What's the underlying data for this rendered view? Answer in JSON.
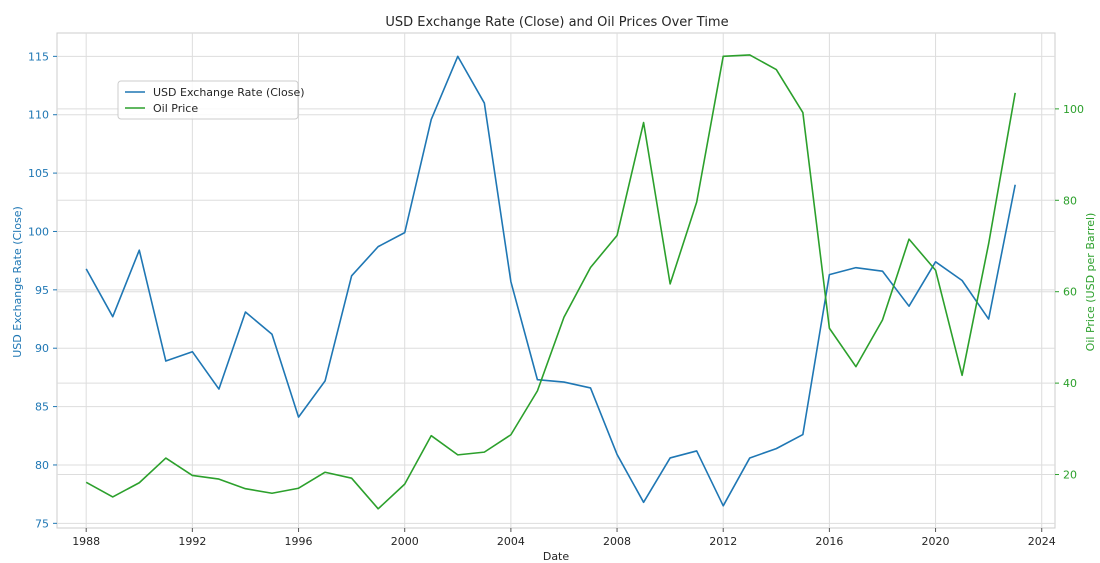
{
  "chart_data": {
    "type": "line",
    "title": "USD Exchange Rate (Close) and Oil Prices Over Time",
    "xlabel": "Date",
    "ylabel_left": "USD Exchange Rate (Close)",
    "ylabel_right": "Oil Price (USD per Barrel)",
    "x": [
      1988,
      1989,
      1990,
      1991,
      1992,
      1993,
      1994,
      1995,
      1996,
      1997,
      1998,
      1999,
      2000,
      2001,
      2002,
      2003,
      2004,
      2005,
      2006,
      2007,
      2008,
      2009,
      2010,
      2011,
      2012,
      2013,
      2014,
      2015,
      2016,
      2017,
      2018,
      2019,
      2020,
      2021,
      2022,
      2023
    ],
    "xlim": [
      1986.9,
      2024.5
    ],
    "xticks": [
      1988,
      1992,
      1996,
      2000,
      2004,
      2008,
      2012,
      2016,
      2020,
      2024
    ],
    "ylim_left": [
      74.6,
      117.0
    ],
    "yticks_left": [
      75,
      80,
      85,
      90,
      95,
      100,
      105,
      110,
      115
    ],
    "ylim_right": [
      8.3,
      116.6
    ],
    "yticks_right": [
      20,
      40,
      60,
      80,
      100
    ],
    "grid": true,
    "legend_position": "upper-left",
    "series": [
      {
        "name": "USD Exchange Rate (Close)",
        "axis": "left",
        "color": "#1f77b4",
        "values": [
          96.8,
          92.7,
          98.4,
          88.9,
          89.7,
          86.5,
          93.1,
          91.2,
          84.1,
          87.2,
          96.2,
          98.7,
          99.9,
          109.6,
          115.0,
          111.0,
          95.7,
          87.3,
          87.1,
          86.6,
          80.9,
          76.8,
          80.6,
          81.2,
          76.5,
          80.6,
          81.4,
          82.6,
          96.3,
          96.9,
          96.6,
          93.6,
          97.4,
          95.8,
          92.5,
          104.0
        ]
      },
      {
        "name": "Oil Price",
        "axis": "right",
        "color": "#2ca02c",
        "values": [
          18.3,
          15.1,
          18.2,
          23.6,
          19.8,
          19.0,
          16.9,
          15.9,
          17.0,
          20.5,
          19.2,
          12.5,
          17.9,
          28.5,
          24.3,
          24.9,
          28.7,
          38.3,
          54.4,
          65.3,
          72.3,
          97.0,
          61.7,
          79.6,
          111.5,
          111.8,
          108.6,
          99.2,
          52.0,
          43.6,
          53.8,
          71.5,
          64.7,
          41.7,
          70.5,
          103.5
        ]
      }
    ]
  }
}
